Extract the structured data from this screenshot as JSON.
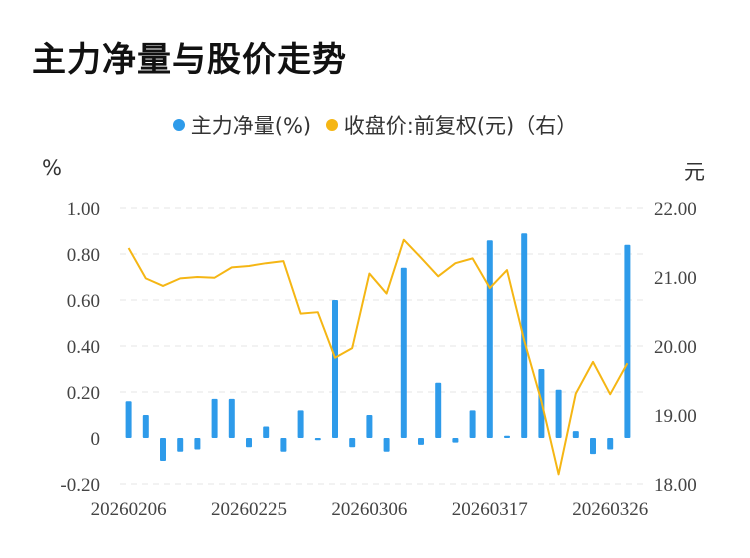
{
  "title": "主力净量与股价走势",
  "legend": {
    "bar_label": "主力净量(%)",
    "line_label": "收盘价:前复权(元)（右）"
  },
  "units": {
    "left": "%",
    "right": "元"
  },
  "colors": {
    "bar": "#2E9BEA",
    "line": "#F5B614",
    "grid": "#E6E6E6"
  },
  "chart_data": {
    "type": "bar",
    "x_ticks": [
      "20260206",
      "20260225",
      "20260306",
      "20260317",
      "20260326"
    ],
    "y_left": {
      "ticks": [
        "1.00",
        "0.80",
        "0.60",
        "0.40",
        "0.20",
        "0",
        "-0.20"
      ],
      "range": [
        -0.2,
        1.0
      ]
    },
    "y_right": {
      "ticks": [
        "22.00",
        "21.00",
        "20.00",
        "19.00",
        "18.00"
      ],
      "range": [
        18.0,
        22.0
      ]
    },
    "grid": true,
    "legend_position": "top",
    "series": [
      {
        "name": "主力净量(%)",
        "type": "bar",
        "axis": "left",
        "values": [
          0.16,
          0.1,
          -0.1,
          -0.06,
          -0.05,
          0.17,
          0.17,
          -0.04,
          0.05,
          -0.06,
          0.12,
          -0.01,
          0.6,
          -0.04,
          0.1,
          -0.06,
          0.74,
          -0.03,
          0.24,
          -0.02,
          0.12,
          0.86,
          0.01,
          0.89,
          0.3,
          0.21,
          0.03,
          -0.07,
          -0.05,
          0.84
        ]
      },
      {
        "name": "收盘价:前复权(元)（右）",
        "type": "line",
        "axis": "right",
        "values": [
          21.42,
          20.98,
          20.87,
          20.98,
          21.0,
          20.99,
          21.14,
          21.16,
          21.2,
          21.23,
          20.47,
          20.49,
          19.83,
          19.97,
          21.05,
          20.76,
          21.54,
          21.28,
          21.01,
          21.2,
          21.27,
          20.84,
          21.1,
          20.08,
          19.2,
          18.14,
          19.31,
          19.77,
          19.3,
          19.75
        ]
      }
    ]
  }
}
